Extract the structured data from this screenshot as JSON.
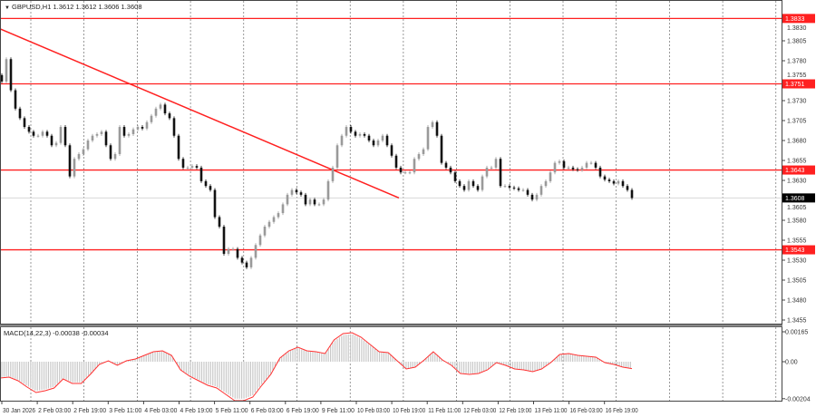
{
  "header": {
    "symbol_line": "GBPUSD,H1  1.3612 1.3612 1.3606 1.3608",
    "menu_icon": "triangle-down-icon"
  },
  "macd_header": "MACD(14,22,3) -0.00038 -0.00034",
  "colors": {
    "level": "#ff2020",
    "trendline": "#ff2020",
    "bear": "#111111",
    "bull": "#9a9a9a",
    "histogram": "#c8c8c8",
    "signal": "#ff3030",
    "current_price_bg": "#000000"
  },
  "chart_data": [
    {
      "type": "candlestick",
      "symbol": "GBPUSD",
      "timeframe": "H1",
      "ylim": [
        1.3455,
        1.3845
      ],
      "y_ticks": [
        "1.3830",
        "1.3805",
        "1.3780",
        "1.3755",
        "1.3730",
        "1.3705",
        "1.3680",
        "1.3655",
        "1.3630",
        "1.3605",
        "1.3580",
        "1.3555",
        "1.3530",
        "1.3505",
        "1.3480",
        "1.3455"
      ],
      "x_ticks": [
        "30 Jan 2026",
        "2 Feb 03:00",
        "2 Feb 19:00",
        "3 Feb 11:00",
        "4 Feb 03:00",
        "4 Feb 19:00",
        "5 Feb 11:00",
        "6 Feb 03:00",
        "6 Feb 19:00",
        "9 Feb 11:00",
        "10 Feb 03:00",
        "10 Feb 19:00",
        "11 Feb 11:00",
        "12 Feb 03:00",
        "12 Feb 19:00",
        "13 Feb 11:00",
        "16 Feb 03:00",
        "16 Feb 19:00"
      ],
      "grid": true,
      "close": [
        1.3754,
        1.3782,
        1.3743,
        1.372,
        1.3708,
        1.3697,
        1.3691,
        1.3686,
        1.3686,
        1.3691,
        1.3686,
        1.3674,
        1.3677,
        1.3697,
        1.3674,
        1.3635,
        1.3657,
        1.3663,
        1.3669,
        1.368,
        1.3686,
        1.3688,
        1.3691,
        1.3674,
        1.3657,
        1.3663,
        1.3697,
        1.3686,
        1.3688,
        1.3694,
        1.3697,
        1.3695,
        1.3703,
        1.3711,
        1.372,
        1.3725,
        1.3714,
        1.3708,
        1.3686,
        1.3657,
        1.3646,
        1.3646,
        1.3648,
        1.3646,
        1.3629,
        1.3623,
        1.3618,
        1.3584,
        1.3572,
        1.3538,
        1.3544,
        1.3544,
        1.3533,
        1.3527,
        1.3521,
        1.3533,
        1.3549,
        1.3561,
        1.3572,
        1.3578,
        1.3584,
        1.3589,
        1.36,
        1.3612,
        1.3618,
        1.3615,
        1.3612,
        1.36,
        1.3606,
        1.36,
        1.36,
        1.3606,
        1.3629,
        1.3646,
        1.3674,
        1.3686,
        1.3697,
        1.3691,
        1.3686,
        1.3688,
        1.3686,
        1.368,
        1.3674,
        1.368,
        1.3686,
        1.3674,
        1.3661,
        1.3646,
        1.364,
        1.364,
        1.364,
        1.3657,
        1.3663,
        1.3669,
        1.3697,
        1.3703,
        1.3686,
        1.3652,
        1.3646,
        1.364,
        1.3629,
        1.3623,
        1.3618,
        1.3629,
        1.3623,
        1.3618,
        1.3635,
        1.3646,
        1.3646,
        1.3657,
        1.3623,
        1.3623,
        1.3621,
        1.362,
        1.3618,
        1.3618,
        1.3612,
        1.3606,
        1.3612,
        1.3623,
        1.3629,
        1.364,
        1.3652,
        1.3654,
        1.3646,
        1.3646,
        1.3644,
        1.3643,
        1.3646,
        1.3652,
        1.3652,
        1.3646,
        1.3635,
        1.3631,
        1.3629,
        1.3626,
        1.3629,
        1.3623,
        1.3618,
        1.3608
      ],
      "levels": [
        {
          "price": 1.3833,
          "label": "1.3833"
        },
        {
          "price": 1.3751,
          "label": "1.3751"
        },
        {
          "price": 1.3643,
          "label": "1.3643"
        },
        {
          "price": 1.3543,
          "label": "1.3543"
        }
      ],
      "trendline": {
        "start_price": 1.382,
        "start_date": "30 Jan 2026",
        "end_price": 1.3608,
        "end_date": "10 Feb 19:00"
      },
      "current_price": {
        "price": 1.3608,
        "label": "1.3608"
      }
    },
    {
      "type": "macd",
      "params": "14,22,3",
      "ylim": [
        -0.00204,
        0.00165
      ],
      "y_ticks": [
        "0.00165",
        "0.00",
        "-0.00204"
      ],
      "values": [
        -0.0009,
        -0.00085,
        -0.00105,
        -0.0014,
        -0.0017,
        -0.0016,
        -0.00145,
        -0.00095,
        -0.0012,
        -0.0012,
        -0.0007,
        -0.00015,
        5e-05,
        -0.0002,
        5e-05,
        0.00015,
        0.00035,
        0.00055,
        0.0006,
        0.00035,
        -0.00045,
        -0.0008,
        -0.00105,
        -0.0013,
        -0.00145,
        -0.0018,
        -0.00215,
        -0.00215,
        -0.00195,
        -0.0013,
        -0.0007,
        0.0002,
        0.0006,
        0.0008,
        0.0006,
        0.00055,
        0.00045,
        0.0012,
        0.00155,
        0.0016,
        0.00135,
        0.00095,
        0.00055,
        0.0005,
        5e-05,
        -0.0004,
        -0.0003,
        0.0001,
        0.00055,
        0.0001,
        -0.0002,
        -0.00065,
        -0.0007,
        -0.00065,
        -0.00045,
        -5e-05,
        -0.0002,
        -0.0004,
        -0.00045,
        -0.00055,
        -0.0004,
        -5e-05,
        0.0004,
        0.00045,
        0.00035,
        0.0003,
        0.00025,
        -5e-05,
        -0.00015,
        -0.0003,
        -0.00038
      ]
    }
  ]
}
